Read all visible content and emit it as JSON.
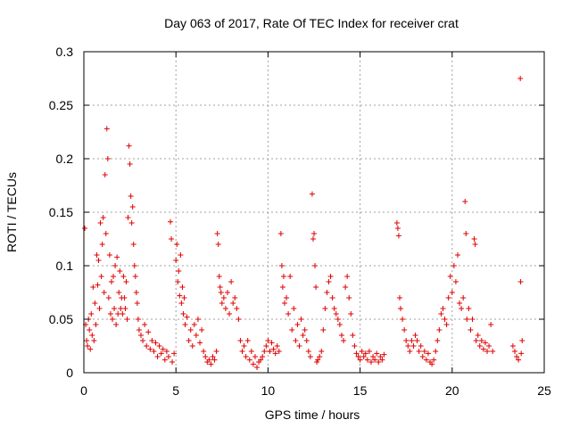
{
  "chart_data": {
    "type": "scatter",
    "title": "Day 063 of 2017, Rate Of TEC Index for receiver crat",
    "xlabel": "GPS time / hours",
    "ylabel": "ROTI / TECUs",
    "xlim": [
      0,
      25
    ],
    "ylim": [
      0,
      0.3
    ],
    "x_ticks": [
      0,
      5,
      10,
      15,
      20,
      25
    ],
    "x_tick_labels": [
      "0",
      "5",
      "10",
      "15",
      "20",
      "25"
    ],
    "y_ticks": [
      0,
      0.05,
      0.1,
      0.15,
      0.2,
      0.25,
      0.3
    ],
    "y_tick_labels": [
      "0",
      "0.05",
      "0.1",
      "0.15",
      "0.2",
      "0.25",
      "0.3"
    ],
    "grid": true,
    "marker": "plus",
    "color": "#e00000",
    "series": [
      {
        "name": "ROTI",
        "points": [
          [
            0.05,
            0.135
          ],
          [
            0.1,
            0.045
          ],
          [
            0.15,
            0.03
          ],
          [
            0.2,
            0.025
          ],
          [
            0.25,
            0.05
          ],
          [
            0.3,
            0.04
          ],
          [
            0.35,
            0.022
          ],
          [
            0.4,
            0.055
          ],
          [
            0.45,
            0.035
          ],
          [
            0.5,
            0.08
          ],
          [
            0.55,
            0.03
          ],
          [
            0.6,
            0.065
          ],
          [
            0.65,
            0.045
          ],
          [
            0.7,
            0.11
          ],
          [
            0.75,
            0.082
          ],
          [
            0.8,
            0.105
          ],
          [
            0.85,
            0.06
          ],
          [
            0.9,
            0.14
          ],
          [
            0.95,
            0.09
          ],
          [
            1.0,
            0.12
          ],
          [
            1.05,
            0.145
          ],
          [
            1.1,
            0.075
          ],
          [
            1.15,
            0.185
          ],
          [
            1.2,
            0.13
          ],
          [
            1.25,
            0.228
          ],
          [
            1.3,
            0.2
          ],
          [
            1.35,
            0.07
          ],
          [
            1.4,
            0.11
          ],
          [
            1.45,
            0.055
          ],
          [
            1.5,
            0.085
          ],
          [
            1.55,
            0.05
          ],
          [
            1.6,
            0.09
          ],
          [
            1.65,
            0.06
          ],
          [
            1.7,
            0.1
          ],
          [
            1.75,
            0.045
          ],
          [
            1.8,
            0.108
          ],
          [
            1.85,
            0.055
          ],
          [
            1.9,
            0.075
          ],
          [
            1.95,
            0.095
          ],
          [
            2.0,
            0.06
          ],
          [
            2.05,
            0.07
          ],
          [
            2.1,
            0.055
          ],
          [
            2.15,
            0.09
          ],
          [
            2.2,
            0.07
          ],
          [
            2.25,
            0.06
          ],
          [
            2.3,
            0.085
          ],
          [
            2.35,
            0.05
          ],
          [
            2.4,
            0.145
          ],
          [
            2.45,
            0.212
          ],
          [
            2.5,
            0.195
          ],
          [
            2.55,
            0.165
          ],
          [
            2.6,
            0.14
          ],
          [
            2.65,
            0.155
          ],
          [
            2.7,
            0.12
          ],
          [
            2.75,
            0.1
          ],
          [
            2.8,
            0.09
          ],
          [
            2.85,
            0.075
          ],
          [
            2.9,
            0.065
          ],
          [
            2.95,
            0.05
          ],
          [
            3.0,
            0.04
          ],
          [
            3.1,
            0.035
          ],
          [
            3.2,
            0.03
          ],
          [
            3.3,
            0.045
          ],
          [
            3.4,
            0.025
          ],
          [
            3.5,
            0.038
          ],
          [
            3.6,
            0.022
          ],
          [
            3.7,
            0.03
          ],
          [
            3.8,
            0.02
          ],
          [
            3.9,
            0.028
          ],
          [
            4.0,
            0.015
          ],
          [
            4.1,
            0.025
          ],
          [
            4.2,
            0.018
          ],
          [
            4.3,
            0.022
          ],
          [
            4.4,
            0.012
          ],
          [
            4.5,
            0.02
          ],
          [
            4.6,
            0.015
          ],
          [
            4.7,
            0.141
          ],
          [
            4.75,
            0.125
          ],
          [
            4.8,
            0.01
          ],
          [
            4.9,
            0.018
          ],
          [
            5.0,
            0.105
          ],
          [
            5.05,
            0.12
          ],
          [
            5.1,
            0.085
          ],
          [
            5.15,
            0.095
          ],
          [
            5.2,
            0.072
          ],
          [
            5.25,
            0.11
          ],
          [
            5.3,
            0.065
          ],
          [
            5.35,
            0.08
          ],
          [
            5.4,
            0.055
          ],
          [
            5.45,
            0.07
          ],
          [
            5.5,
            0.045
          ],
          [
            5.6,
            0.052
          ],
          [
            5.7,
            0.03
          ],
          [
            5.8,
            0.04
          ],
          [
            5.9,
            0.025
          ],
          [
            6.0,
            0.045
          ],
          [
            6.1,
            0.035
          ],
          [
            6.2,
            0.05
          ],
          [
            6.3,
            0.028
          ],
          [
            6.4,
            0.04
          ],
          [
            6.5,
            0.02
          ],
          [
            6.6,
            0.015
          ],
          [
            6.7,
            0.01
          ],
          [
            6.8,
            0.012
          ],
          [
            6.9,
            0.008
          ],
          [
            7.0,
            0.015
          ],
          [
            7.1,
            0.012
          ],
          [
            7.2,
            0.02
          ],
          [
            7.25,
            0.13
          ],
          [
            7.3,
            0.12
          ],
          [
            7.35,
            0.09
          ],
          [
            7.4,
            0.08
          ],
          [
            7.45,
            0.075
          ],
          [
            7.5,
            0.065
          ],
          [
            7.6,
            0.07
          ],
          [
            7.7,
            0.06
          ],
          [
            7.8,
            0.075
          ],
          [
            7.9,
            0.055
          ],
          [
            8.0,
            0.085
          ],
          [
            8.1,
            0.065
          ],
          [
            8.2,
            0.07
          ],
          [
            8.3,
            0.06
          ],
          [
            8.4,
            0.05
          ],
          [
            8.5,
            0.03
          ],
          [
            8.6,
            0.02
          ],
          [
            8.7,
            0.025
          ],
          [
            8.8,
            0.015
          ],
          [
            8.9,
            0.03
          ],
          [
            9.0,
            0.012
          ],
          [
            9.1,
            0.02
          ],
          [
            9.2,
            0.008
          ],
          [
            9.3,
            0.015
          ],
          [
            9.4,
            0.005
          ],
          [
            9.5,
            0.01
          ],
          [
            9.6,
            0.012
          ],
          [
            9.7,
            0.015
          ],
          [
            9.8,
            0.02
          ],
          [
            9.9,
            0.025
          ],
          [
            10.0,
            0.03
          ],
          [
            10.1,
            0.02
          ],
          [
            10.2,
            0.028
          ],
          [
            10.3,
            0.022
          ],
          [
            10.4,
            0.018
          ],
          [
            10.5,
            0.025
          ],
          [
            10.6,
            0.02
          ],
          [
            10.7,
            0.13
          ],
          [
            10.75,
            0.1
          ],
          [
            10.8,
            0.08
          ],
          [
            10.85,
            0.09
          ],
          [
            10.9,
            0.065
          ],
          [
            11.0,
            0.07
          ],
          [
            11.1,
            0.055
          ],
          [
            11.2,
            0.09
          ],
          [
            11.3,
            0.04
          ],
          [
            11.4,
            0.06
          ],
          [
            11.5,
            0.03
          ],
          [
            11.6,
            0.045
          ],
          [
            11.7,
            0.025
          ],
          [
            11.8,
            0.05
          ],
          [
            11.9,
            0.035
          ],
          [
            12.0,
            0.04
          ],
          [
            12.1,
            0.03
          ],
          [
            12.2,
            0.02
          ],
          [
            12.3,
            0.015
          ],
          [
            12.4,
            0.167
          ],
          [
            12.45,
            0.125
          ],
          [
            12.5,
            0.13
          ],
          [
            12.55,
            0.1
          ],
          [
            12.6,
            0.08
          ],
          [
            12.65,
            0.01
          ],
          [
            12.7,
            0.012
          ],
          [
            12.8,
            0.015
          ],
          [
            12.9,
            0.02
          ],
          [
            13.0,
            0.04
          ],
          [
            13.1,
            0.06
          ],
          [
            13.2,
            0.075
          ],
          [
            13.3,
            0.085
          ],
          [
            13.4,
            0.09
          ],
          [
            13.5,
            0.07
          ],
          [
            13.6,
            0.06
          ],
          [
            13.7,
            0.055
          ],
          [
            13.8,
            0.05
          ],
          [
            13.9,
            0.045
          ],
          [
            14.0,
            0.035
          ],
          [
            14.1,
            0.03
          ],
          [
            14.2,
            0.08
          ],
          [
            14.3,
            0.09
          ],
          [
            14.4,
            0.07
          ],
          [
            14.5,
            0.055
          ],
          [
            14.6,
            0.035
          ],
          [
            14.7,
            0.025
          ],
          [
            14.8,
            0.018
          ],
          [
            14.9,
            0.015
          ],
          [
            15.0,
            0.012
          ],
          [
            15.1,
            0.02
          ],
          [
            15.2,
            0.015
          ],
          [
            15.3,
            0.018
          ],
          [
            15.4,
            0.012
          ],
          [
            15.5,
            0.02
          ],
          [
            15.6,
            0.01
          ],
          [
            15.7,
            0.015
          ],
          [
            15.8,
            0.012
          ],
          [
            15.9,
            0.018
          ],
          [
            16.0,
            0.01
          ],
          [
            16.1,
            0.015
          ],
          [
            16.2,
            0.012
          ],
          [
            16.3,
            0.017
          ],
          [
            17.0,
            0.14
          ],
          [
            17.05,
            0.135
          ],
          [
            17.1,
            0.128
          ],
          [
            17.15,
            0.07
          ],
          [
            17.2,
            0.06
          ],
          [
            17.3,
            0.05
          ],
          [
            17.4,
            0.04
          ],
          [
            17.5,
            0.03
          ],
          [
            17.6,
            0.025
          ],
          [
            17.7,
            0.02
          ],
          [
            17.8,
            0.03
          ],
          [
            17.9,
            0.025
          ],
          [
            18.0,
            0.035
          ],
          [
            18.1,
            0.03
          ],
          [
            18.2,
            0.02
          ],
          [
            18.3,
            0.025
          ],
          [
            18.4,
            0.015
          ],
          [
            18.5,
            0.02
          ],
          [
            18.6,
            0.012
          ],
          [
            18.7,
            0.018
          ],
          [
            18.8,
            0.01
          ],
          [
            18.9,
            0.008
          ],
          [
            19.0,
            0.012
          ],
          [
            19.1,
            0.02
          ],
          [
            19.2,
            0.03
          ],
          [
            19.3,
            0.04
          ],
          [
            19.4,
            0.055
          ],
          [
            19.5,
            0.06
          ],
          [
            19.6,
            0.05
          ],
          [
            19.7,
            0.045
          ],
          [
            19.8,
            0.07
          ],
          [
            19.9,
            0.09
          ],
          [
            20.0,
            0.075
          ],
          [
            20.1,
            0.1
          ],
          [
            20.2,
            0.085
          ],
          [
            20.3,
            0.11
          ],
          [
            20.4,
            0.065
          ],
          [
            20.5,
            0.06
          ],
          [
            20.6,
            0.07
          ],
          [
            20.7,
            0.16
          ],
          [
            20.75,
            0.13
          ],
          [
            20.8,
            0.05
          ],
          [
            20.9,
            0.06
          ],
          [
            21.0,
            0.04
          ],
          [
            21.1,
            0.05
          ],
          [
            21.2,
            0.125
          ],
          [
            21.25,
            0.12
          ],
          [
            21.3,
            0.03
          ],
          [
            21.4,
            0.035
          ],
          [
            21.5,
            0.025
          ],
          [
            21.6,
            0.03
          ],
          [
            21.7,
            0.022
          ],
          [
            21.8,
            0.028
          ],
          [
            21.9,
            0.02
          ],
          [
            22.0,
            0.025
          ],
          [
            22.1,
            0.045
          ],
          [
            22.2,
            0.02
          ],
          [
            23.3,
            0.025
          ],
          [
            23.4,
            0.02
          ],
          [
            23.5,
            0.015
          ],
          [
            23.6,
            0.012
          ],
          [
            23.7,
            0.275
          ],
          [
            23.72,
            0.085
          ],
          [
            23.75,
            0.018
          ],
          [
            23.8,
            0.03
          ]
        ]
      }
    ]
  }
}
